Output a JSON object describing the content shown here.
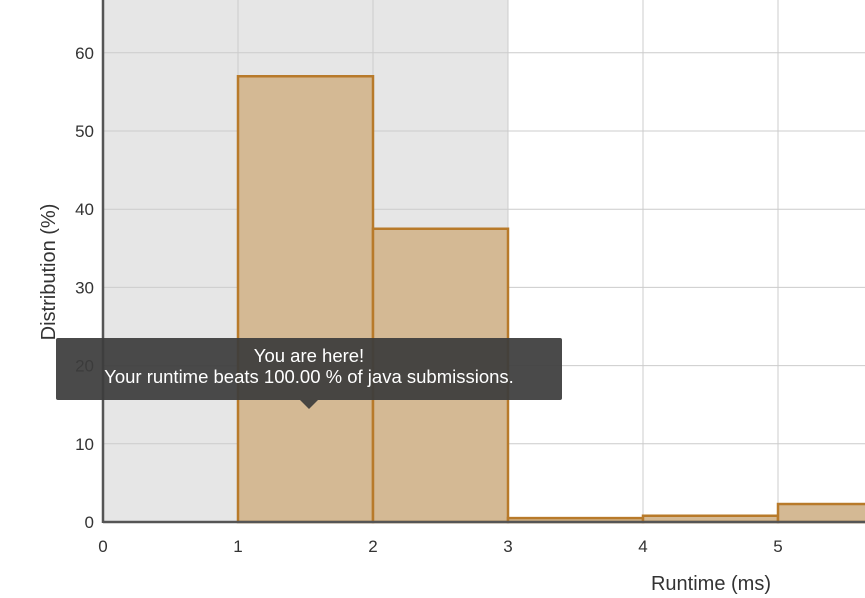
{
  "chart_data": {
    "type": "bar",
    "title": "",
    "xlabel": "Runtime (ms)",
    "ylabel": "Distribution (%)",
    "xlim": [
      0,
      5.6
    ],
    "ylim": [
      0,
      66
    ],
    "x_ticks": [
      "0",
      "1",
      "2",
      "3",
      "4",
      "5"
    ],
    "y_ticks": [
      "0",
      "10",
      "20",
      "30",
      "40",
      "50",
      "60"
    ],
    "bins": [
      {
        "x0": 1,
        "x1": 2,
        "value": 57
      },
      {
        "x0": 2,
        "x1": 3,
        "value": 37.5
      },
      {
        "x0": 3,
        "x1": 4,
        "value": 0.5
      },
      {
        "x0": 4,
        "x1": 5,
        "value": 0.8
      },
      {
        "x0": 5,
        "x1": 6,
        "value": 2.3
      }
    ],
    "highlight_range": [
      0,
      3
    ],
    "grid": true,
    "colors": {
      "bar_fill": "#d4b994",
      "bar_stroke": "#b87a2a",
      "highlight_bg": "#e6e6e6",
      "grid": "#cccccc",
      "axis": "#555555"
    },
    "tooltip": {
      "line1": "You are here!",
      "line2": "Your runtime beats 100.00 % of java submissions."
    }
  }
}
